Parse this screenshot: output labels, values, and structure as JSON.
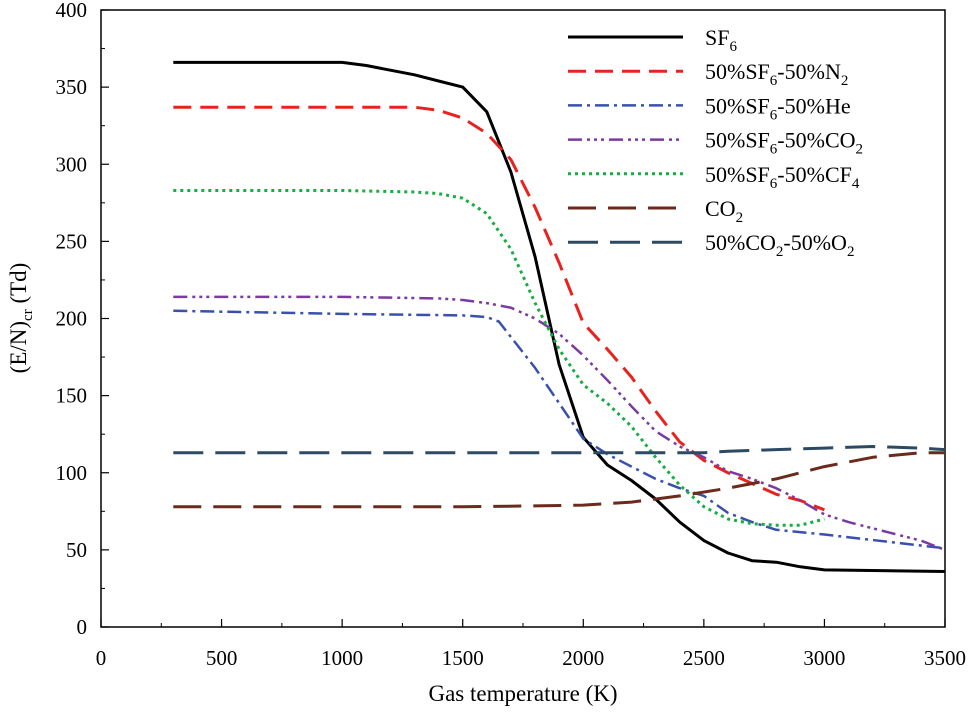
{
  "chart_data": {
    "type": "line",
    "xlabel": "Gas temperature (K)",
    "ylabel": {
      "main": "(E/N)",
      "sub": "cr",
      "unit": " (Td)"
    },
    "xlim": [
      0,
      3500
    ],
    "ylim": [
      0,
      400
    ],
    "xticks": [
      0,
      500,
      1000,
      1500,
      2000,
      2500,
      3000,
      3500
    ],
    "yticks": [
      0,
      50,
      100,
      150,
      200,
      250,
      300,
      350,
      400
    ],
    "grid": false,
    "legend_position": "top-right",
    "series": [
      {
        "name": "SF6",
        "legend_parts": [
          {
            "t": "SF"
          },
          {
            "t": "6",
            "sub": true
          }
        ],
        "color": "#000000",
        "dash": "",
        "width": 3,
        "x": [
          300,
          1000,
          1100,
          1200,
          1300,
          1400,
          1500,
          1600,
          1700,
          1800,
          1900,
          2000,
          2100,
          2200,
          2300,
          2400,
          2500,
          2600,
          2700,
          2800,
          2900,
          3000,
          3500
        ],
        "y": [
          366,
          366,
          364,
          361,
          358,
          354,
          350,
          334,
          295,
          240,
          170,
          123,
          105,
          95,
          83,
          68,
          56,
          48,
          43,
          42,
          39,
          37,
          36
        ]
      },
      {
        "name": "50%SF6-50%N2",
        "legend_parts": [
          {
            "t": "50%SF"
          },
          {
            "t": "6",
            "sub": true
          },
          {
            "t": "-50%N"
          },
          {
            "t": "2",
            "sub": true
          }
        ],
        "color": "#e8231f",
        "dash": "18,9",
        "width": 3,
        "x": [
          300,
          1000,
          1300,
          1400,
          1500,
          1600,
          1700,
          1800,
          1900,
          2000,
          2100,
          2200,
          2300,
          2400,
          2500,
          2600,
          2700,
          2800,
          2900,
          3000
        ],
        "y": [
          337,
          337,
          337,
          335,
          330,
          320,
          303,
          272,
          236,
          197,
          180,
          162,
          140,
          120,
          108,
          100,
          93,
          86,
          82,
          76
        ]
      },
      {
        "name": "50%SF6-50%He",
        "legend_parts": [
          {
            "t": "50%SF"
          },
          {
            "t": "6",
            "sub": true
          },
          {
            "t": "-50%He"
          }
        ],
        "color": "#3a50ad",
        "dash": "14,5,3,5",
        "width": 2.5,
        "x": [
          300,
          1000,
          1500,
          1600,
          1650,
          1700,
          1800,
          1900,
          2000,
          2100,
          2200,
          2300,
          2400,
          2500,
          2600,
          2700,
          2800,
          3000,
          3500
        ],
        "y": [
          205,
          203,
          202,
          201,
          198,
          188,
          168,
          145,
          122,
          112,
          104,
          96,
          90,
          85,
          74,
          68,
          63,
          60,
          51
        ]
      },
      {
        "name": "50%SF6-50%CO2",
        "legend_parts": [
          {
            "t": "50%SF"
          },
          {
            "t": "6",
            "sub": true
          },
          {
            "t": "-50%CO"
          },
          {
            "t": "2",
            "sub": true
          }
        ],
        "color": "#7b3aa0",
        "dash": "14,5,3,4,3,4,3,5",
        "width": 2.5,
        "x": [
          300,
          1000,
          1400,
          1500,
          1600,
          1700,
          1800,
          1900,
          2000,
          2100,
          2200,
          2300,
          2400,
          2500,
          2600,
          2700,
          2800,
          2900,
          3000,
          3100,
          3200,
          3300,
          3400,
          3500
        ],
        "y": [
          214,
          214,
          213,
          212,
          210,
          207,
          200,
          190,
          176,
          160,
          143,
          127,
          117,
          110,
          101,
          96,
          90,
          82,
          73,
          68,
          64,
          60,
          56,
          50
        ]
      },
      {
        "name": "50%SF6-50%CF4",
        "legend_parts": [
          {
            "t": "50%SF"
          },
          {
            "t": "6",
            "sub": true
          },
          {
            "t": "-50%CF"
          },
          {
            "t": "4",
            "sub": true
          }
        ],
        "color": "#17ad42",
        "dash": "3,4",
        "width": 3,
        "x": [
          300,
          1000,
          1300,
          1400,
          1500,
          1600,
          1700,
          1800,
          1900,
          2000,
          2100,
          2200,
          2300,
          2400,
          2500,
          2600,
          2700,
          2800,
          2900,
          3000
        ],
        "y": [
          283,
          283,
          282,
          281,
          278,
          268,
          245,
          210,
          180,
          157,
          145,
          130,
          110,
          92,
          78,
          70,
          67,
          66,
          66,
          70
        ]
      },
      {
        "name": "CO2",
        "legend_parts": [
          {
            "t": "CO"
          },
          {
            "t": "2",
            "sub": true
          }
        ],
        "color": "#6b2a1c",
        "dash": "28,12",
        "width": 3,
        "x": [
          300,
          1000,
          1500,
          1800,
          2000,
          2200,
          2400,
          2600,
          2800,
          3000,
          3200,
          3400,
          3500
        ],
        "y": [
          78,
          78,
          78,
          78.5,
          79,
          81,
          85,
          90,
          96,
          104,
          110,
          113,
          113
        ]
      },
      {
        "name": "50%CO2-50%O2",
        "legend_parts": [
          {
            "t": "50%CO"
          },
          {
            "t": "2",
            "sub": true
          },
          {
            "t": "-50%O"
          },
          {
            "t": "2",
            "sub": true
          }
        ],
        "color": "#2c4a63",
        "dash": "30,12",
        "width": 3,
        "x": [
          300,
          1000,
          1500,
          2000,
          2500,
          2600,
          2800,
          3000,
          3200,
          3400,
          3500
        ],
        "y": [
          113,
          113,
          113,
          113,
          113,
          114,
          115,
          116,
          117,
          116,
          115
        ]
      }
    ]
  }
}
